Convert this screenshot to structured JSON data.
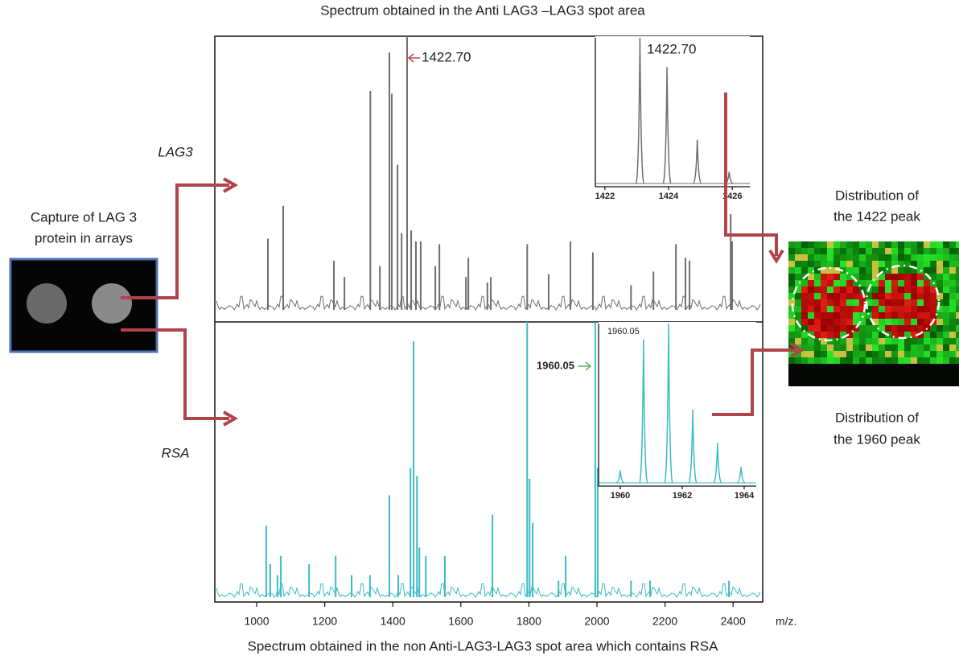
{
  "title": "Spectrum obtained in the Anti LAG3 –LAG3 spot area",
  "caption": "Spectrum obtained in the non Anti-LAG3-LAG3 spot area which contains RSA",
  "labels": {
    "lag3": "LAG3",
    "rsa": "RSA",
    "capture": [
      "Capture of LAG 3",
      "protein in arrays"
    ],
    "dist1422": [
      "Distribution of",
      "the 1422 peak"
    ],
    "dist1960": [
      "Distribution of",
      "the 1960 peak"
    ]
  },
  "chart_data": [
    {
      "type": "spike",
      "color": "#6e6e6e",
      "xlim": [
        877,
        2487
      ],
      "ylim": [
        0,
        100
      ],
      "annotation": "1422.70",
      "x": [
        1033,
        1078,
        1227,
        1258,
        1334,
        1362,
        1390,
        1397,
        1414,
        1426,
        1442,
        1454,
        1468,
        1482,
        1525,
        1537,
        1615,
        1622,
        1678,
        1688,
        1795,
        1858,
        1922,
        1988,
        2100,
        2166,
        2232,
        2260,
        2272,
        2393,
        2397
      ],
      "values": [
        26,
        38,
        18,
        12,
        80,
        16,
        94,
        79,
        53,
        28,
        100,
        29,
        25,
        25,
        16,
        24,
        12,
        19,
        10,
        12,
        24,
        13,
        25,
        21,
        9,
        14,
        24,
        19,
        18,
        35,
        25
      ]
    },
    {
      "type": "spike",
      "color": "#3cbcc4",
      "xlim": [
        877,
        2487
      ],
      "ylim": [
        0,
        100
      ],
      "annotation": "1960.05",
      "xlabel": "m/z.",
      "xticks": [
        1000,
        1200,
        1400,
        1600,
        1800,
        2000,
        2200,
        2400
      ],
      "x": [
        1028,
        1040,
        1061,
        1071,
        1154,
        1232,
        1279,
        1333,
        1390,
        1416,
        1452,
        1461,
        1471,
        1478,
        1497,
        1553,
        1693,
        1795,
        1802,
        1811,
        1887,
        1908,
        1995,
        2002,
        2100,
        2156,
        2388
      ],
      "values": [
        26,
        12,
        8,
        15,
        12,
        15,
        8,
        8,
        37,
        8,
        47,
        93,
        44,
        18,
        15,
        15,
        30,
        100,
        43,
        27,
        6,
        15,
        100,
        47,
        6,
        6,
        6
      ]
    },
    {
      "type": "peak",
      "color": "#6e6e6e",
      "xlim": [
        1421.7,
        1426.55
      ],
      "ylim": [
        0,
        100
      ],
      "annotation": "1422.70",
      "xticks": [
        1422,
        1424,
        1426
      ],
      "x": [
        1423.1,
        1423.95,
        1424.9,
        1425.9
      ],
      "values": [
        100,
        80,
        30,
        8
      ]
    },
    {
      "type": "peak",
      "color": "#3cbcc4",
      "xlim": [
        1959.3,
        1964.39
      ],
      "ylim": [
        0,
        100
      ],
      "annotation": "1960.05",
      "xticks": [
        1960,
        1962,
        1964
      ],
      "x": [
        1960,
        1960.75,
        1961.56,
        1962.34,
        1963.14,
        1963.9
      ],
      "values": [
        8,
        90,
        100,
        46,
        25,
        10
      ]
    }
  ]
}
